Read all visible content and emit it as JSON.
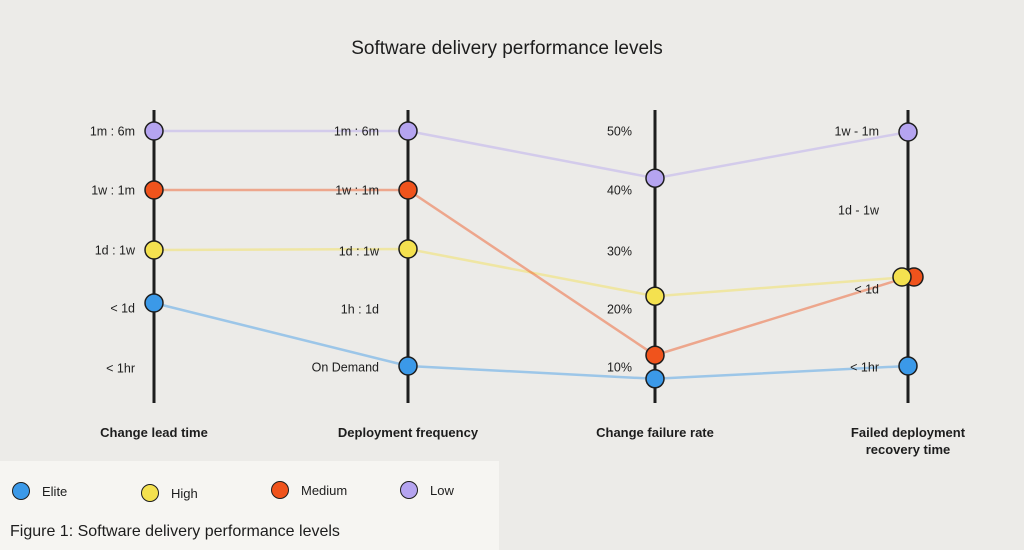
{
  "chart_data": {
    "type": "parallel-coordinates",
    "title": "Software delivery performance levels",
    "axes": [
      {
        "label": "Change lead time",
        "ticks": [
          "1m : 6m",
          "1w : 1m",
          "1d : 1w",
          "< 1d",
          "< 1hr"
        ]
      },
      {
        "label": "Deployment frequency",
        "ticks": [
          "1m : 6m",
          "1w : 1m",
          "1d : 1w",
          "1h : 1d",
          "On Demand"
        ]
      },
      {
        "label": "Change failure rate",
        "ticks": [
          "50%",
          "40%",
          "30%",
          "20%",
          "10%"
        ]
      },
      {
        "label": "Failed deployment recovery time",
        "ticks": [
          "1w - 1m",
          "1d - 1w",
          "< 1d",
          "< 1hr"
        ]
      }
    ],
    "series": [
      {
        "name": "Low",
        "color": "#b5a4f0",
        "values": [
          "1m : 6m",
          "1m : 6m",
          42,
          "1w - 1m"
        ]
      },
      {
        "name": "Medium",
        "color": "#f0531c",
        "values": [
          "1w : 1m",
          "1w : 1m",
          12,
          "< 1d"
        ]
      },
      {
        "name": "High",
        "color": "#f4e14f",
        "values": [
          "1d : 1w",
          "1d : 1w",
          22,
          "< 1d"
        ]
      },
      {
        "name": "Elite",
        "color": "#3b99e8",
        "values": [
          "< 1d",
          "On Demand",
          8,
          "< 1hr"
        ]
      }
    ],
    "legend_order": [
      "Elite",
      "High",
      "Medium",
      "Low"
    ],
    "legend_placement": "bottom-left"
  },
  "caption": "Figure 1: Software delivery performance levels"
}
